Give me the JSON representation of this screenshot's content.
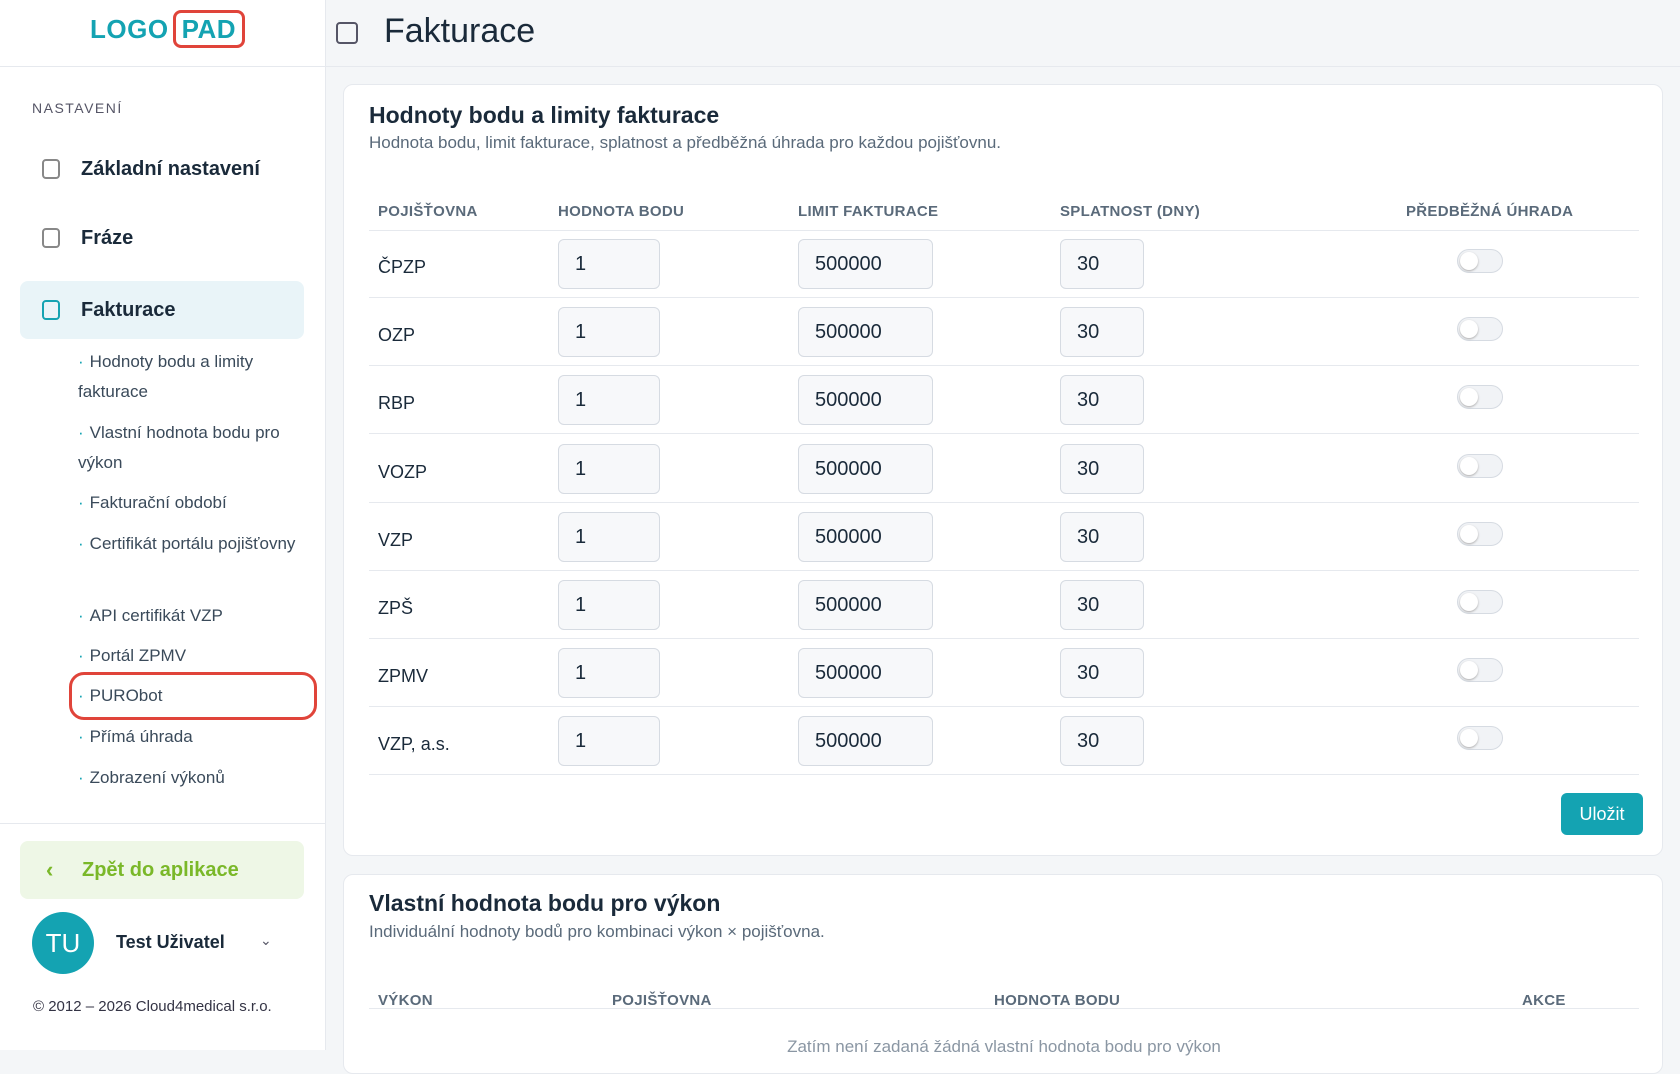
{
  "logo": {
    "left": "LOGO",
    "right": "PAD"
  },
  "sidebar": {
    "section_label": "NASTAVENÍ",
    "nav": [
      "Základní nastavení",
      "Fráze",
      "Fakturace"
    ],
    "subnav": [
      "Hodnoty bodu a limity fakturace",
      "Vlastní hodnota bodu pro výkon",
      "Fakturační období",
      "Certifikát portálu pojišťovny",
      "API certifikát VZP",
      "Portál ZPMV",
      "PURObot",
      "Přímá úhrada",
      "Zobrazení výkonů"
    ],
    "back": "Zpět do aplikace",
    "user": {
      "initials": "TU",
      "name": "Test Uživatel"
    },
    "copyright": "© 2012 – 2026 Cloud4medical s.r.o."
  },
  "header": {
    "title": "Fakturace"
  },
  "card1": {
    "title": "Hodnoty bodu a limity fakturace",
    "subtitle": "Hodnota bodu, limit fakturace, splatnost a předběžná úhrada pro každou pojišťovnu.",
    "columns": [
      "POJIŠŤOVNA",
      "HODNOTA BODU",
      "LIMIT FAKTURACE",
      "SPLATNOST (DNY)",
      "PŘEDBĚŽNÁ ÚHRADA"
    ],
    "rows": [
      [
        "ČPZP",
        1,
        500000,
        30
      ],
      [
        "OZP",
        1,
        500000,
        30
      ],
      [
        "RBP",
        1,
        500000,
        30
      ],
      [
        "VOZP",
        1,
        500000,
        30
      ],
      [
        "VZP",
        1,
        500000,
        30
      ],
      [
        "ZPŠ",
        1,
        500000,
        30
      ],
      [
        "ZPMV",
        1,
        500000,
        30
      ],
      [
        "VZP, a.s.",
        1,
        500000,
        30
      ]
    ],
    "save": "Uložit"
  },
  "card2": {
    "title": "Vlastní hodnota bodu pro výkon",
    "subtitle": "Individuální hodnoty bodů pro kombinaci výkon × pojišťovna.",
    "columns": [
      "VÝKON",
      "POJIŠŤOVNA",
      "HODNOTA BODU",
      "AKCE"
    ],
    "empty": "Zatím není zadaná žádná vlastní hodnota bodu pro výkon"
  }
}
